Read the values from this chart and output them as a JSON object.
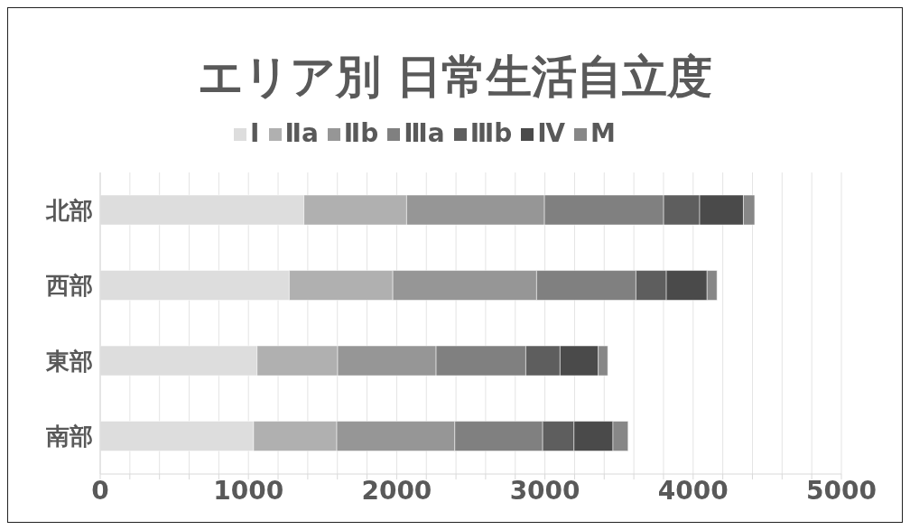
{
  "chart_data": {
    "type": "bar",
    "title": "エリア別 日常生活自立度",
    "orientation": "horizontal",
    "stacked": true,
    "categories": [
      "北部",
      "西部",
      "東部",
      "南部"
    ],
    "series": [
      {
        "name": "Ⅰ",
        "color": "#dddddd",
        "values": [
          1374,
          1275,
          1058,
          1035
        ]
      },
      {
        "name": "Ⅱa",
        "color": "#b0b0b0",
        "values": [
          693,
          699,
          544,
          561
        ]
      },
      {
        "name": "Ⅱb",
        "color": "#969696",
        "values": [
          930,
          970,
          664,
          796
        ]
      },
      {
        "name": "Ⅲa",
        "color": "#808080",
        "values": [
          804,
          670,
          605,
          593
        ]
      },
      {
        "name": "Ⅲb",
        "color": "#5e5e5e",
        "values": [
          243,
          205,
          231,
          211
        ]
      },
      {
        "name": "Ⅳ",
        "color": "#4a4a4a",
        "values": [
          295,
          275,
          258,
          263
        ]
      },
      {
        "name": "M",
        "color": "#878787",
        "values": [
          76,
          67,
          64,
          102
        ]
      }
    ],
    "xlim": [
      0,
      5000
    ],
    "xticks": [
      0,
      {
        "value": 200,
        "label": null
      },
      {
        "value": 400,
        "label": null
      },
      {
        "value": 600,
        "label": null
      },
      {
        "value": 800,
        "label": null
      },
      1000,
      {
        "value": 1200,
        "label": null
      },
      {
        "value": 1400,
        "label": null
      },
      {
        "value": 1600,
        "label": null
      },
      {
        "value": 1800,
        "label": null
      },
      2000,
      {
        "value": 2200,
        "label": null
      },
      {
        "value": 2400,
        "label": null
      },
      {
        "value": 2600,
        "label": null
      },
      {
        "value": 2800,
        "label": null
      },
      3000,
      {
        "value": 3200,
        "label": null
      },
      {
        "value": 3400,
        "label": null
      },
      {
        "value": 3600,
        "label": null
      },
      {
        "value": 3800,
        "label": null
      },
      4000,
      {
        "value": 4200,
        "label": null
      },
      {
        "value": 4400,
        "label": null
      },
      {
        "value": 4600,
        "label": null
      },
      {
        "value": 4800,
        "label": null
      },
      5000
    ],
    "grid": "x",
    "legend": "top"
  }
}
